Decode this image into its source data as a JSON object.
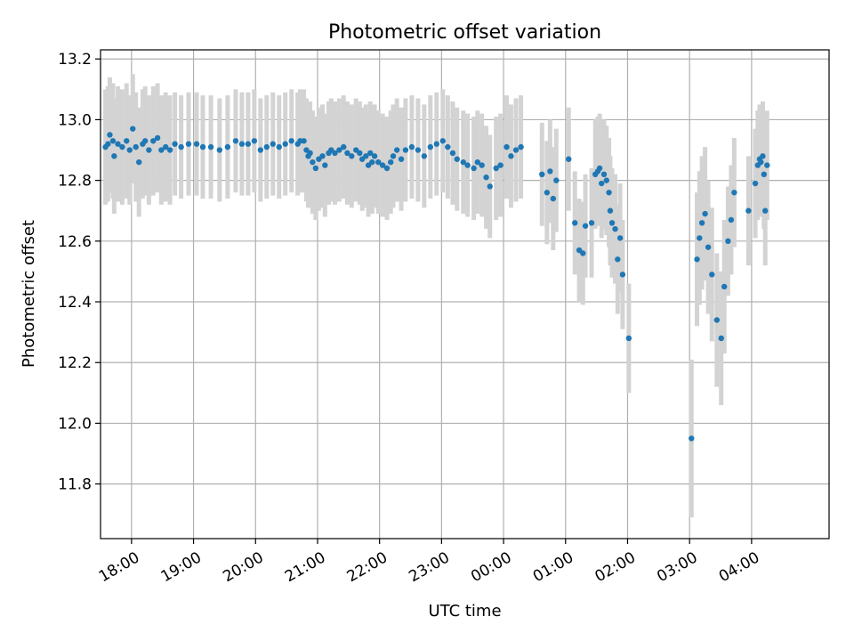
{
  "chart_data": {
    "type": "scatter",
    "title": "Photometric offset variation",
    "xlabel": "UTC time",
    "ylabel": "Photometric offset",
    "grid": true,
    "legend": "none",
    "x_unit": "hours since 17:00 UTC",
    "xlim": [
      0.5,
      12.25
    ],
    "ylim": [
      11.62,
      13.23
    ],
    "x_ticks": [
      {
        "value": 1,
        "label": "18:00"
      },
      {
        "value": 2,
        "label": "19:00"
      },
      {
        "value": 3,
        "label": "20:00"
      },
      {
        "value": 4,
        "label": "21:00"
      },
      {
        "value": 5,
        "label": "22:00"
      },
      {
        "value": 6,
        "label": "23:00"
      },
      {
        "value": 7,
        "label": "00:00"
      },
      {
        "value": 8,
        "label": "01:00"
      },
      {
        "value": 9,
        "label": "02:00"
      },
      {
        "value": 10,
        "label": "03:00"
      },
      {
        "value": 11,
        "label": "04:00"
      }
    ],
    "y_ticks": [
      {
        "value": 11.8,
        "label": "11.8"
      },
      {
        "value": 12.0,
        "label": "12.0"
      },
      {
        "value": 12.2,
        "label": "12.2"
      },
      {
        "value": 12.4,
        "label": "12.4"
      },
      {
        "value": 12.6,
        "label": "12.6"
      },
      {
        "value": 12.8,
        "label": "12.8"
      },
      {
        "value": 13.0,
        "label": "13.0"
      },
      {
        "value": 13.2,
        "label": "13.2"
      }
    ],
    "colors": {
      "points": "#1f77b4",
      "errorbars": "#d3d3d3",
      "grid": "#b0b0b0"
    },
    "series": [
      {
        "name": "Photometric offset",
        "x": [
          0.58,
          0.62,
          0.65,
          0.7,
          0.72,
          0.78,
          0.85,
          0.92,
          0.97,
          1.02,
          1.07,
          1.12,
          1.18,
          1.22,
          1.28,
          1.35,
          1.42,
          1.48,
          1.55,
          1.62,
          1.7,
          1.8,
          1.92,
          2.05,
          2.15,
          2.28,
          2.42,
          2.55,
          2.68,
          2.78,
          2.88,
          2.98,
          3.08,
          3.18,
          3.28,
          3.38,
          3.48,
          3.58,
          3.68,
          3.72,
          3.78,
          3.82,
          3.85,
          3.88,
          3.92,
          3.97,
          4.02,
          4.08,
          4.12,
          4.18,
          4.22,
          4.28,
          4.35,
          4.42,
          4.48,
          4.55,
          4.62,
          4.68,
          4.72,
          4.78,
          4.82,
          4.85,
          4.88,
          4.92,
          4.98,
          5.05,
          5.12,
          5.18,
          5.22,
          5.28,
          5.35,
          5.42,
          5.52,
          5.62,
          5.72,
          5.82,
          5.92,
          6.02,
          6.1,
          6.18,
          6.25,
          6.35,
          6.42,
          6.52,
          6.58,
          6.65,
          6.72,
          6.78,
          6.88,
          6.95,
          7.05,
          7.12,
          7.2,
          7.28,
          7.62,
          7.7,
          7.75,
          7.8,
          7.85,
          8.05,
          8.15,
          8.22,
          8.28,
          8.32,
          8.42,
          8.48,
          8.52,
          8.55,
          8.58,
          8.62,
          8.66,
          8.7,
          8.72,
          8.75,
          8.8,
          8.84,
          8.88,
          8.92,
          9.02,
          10.03,
          10.12,
          10.16,
          10.2,
          10.25,
          10.3,
          10.36,
          10.44,
          10.51,
          10.56,
          10.62,
          10.67,
          10.72,
          10.95,
          11.06,
          11.1,
          11.13,
          11.15,
          11.18,
          11.2,
          11.22,
          11.25
        ],
        "y": [
          12.91,
          12.92,
          12.95,
          12.93,
          12.88,
          12.92,
          12.91,
          12.93,
          12.9,
          12.97,
          12.91,
          12.86,
          12.92,
          12.93,
          12.9,
          12.93,
          12.94,
          12.9,
          12.91,
          12.9,
          12.92,
          12.91,
          12.92,
          12.92,
          12.91,
          12.91,
          12.9,
          12.91,
          12.93,
          12.92,
          12.92,
          12.93,
          12.9,
          12.91,
          12.92,
          12.91,
          12.92,
          12.93,
          12.92,
          12.93,
          12.93,
          12.9,
          12.88,
          12.89,
          12.86,
          12.84,
          12.87,
          12.88,
          12.85,
          12.89,
          12.9,
          12.89,
          12.9,
          12.91,
          12.89,
          12.88,
          12.9,
          12.89,
          12.87,
          12.88,
          12.85,
          12.89,
          12.86,
          12.88,
          12.86,
          12.85,
          12.84,
          12.86,
          12.88,
          12.9,
          12.87,
          12.9,
          12.91,
          12.9,
          12.88,
          12.91,
          12.92,
          12.93,
          12.91,
          12.89,
          12.87,
          12.86,
          12.85,
          12.84,
          12.86,
          12.85,
          12.81,
          12.78,
          12.84,
          12.85,
          12.91,
          12.88,
          12.9,
          12.91,
          12.82,
          12.76,
          12.83,
          12.74,
          12.8,
          12.87,
          12.66,
          12.57,
          12.56,
          12.65,
          12.66,
          12.82,
          12.83,
          12.84,
          12.79,
          12.82,
          12.8,
          12.76,
          12.7,
          12.66,
          12.64,
          12.54,
          12.61,
          12.49,
          12.28,
          11.95,
          12.54,
          12.61,
          12.66,
          12.69,
          12.58,
          12.49,
          12.34,
          12.28,
          12.45,
          12.6,
          12.67,
          12.76,
          12.7,
          12.79,
          12.85,
          12.87,
          12.86,
          12.88,
          12.82,
          12.7,
          12.85
        ],
        "err": [
          0.19,
          0.19,
          0.19,
          0.19,
          0.19,
          0.19,
          0.19,
          0.19,
          0.18,
          0.18,
          0.18,
          0.18,
          0.18,
          0.18,
          0.18,
          0.18,
          0.18,
          0.18,
          0.18,
          0.18,
          0.17,
          0.17,
          0.17,
          0.17,
          0.17,
          0.17,
          0.17,
          0.17,
          0.17,
          0.17,
          0.17,
          0.17,
          0.17,
          0.17,
          0.17,
          0.17,
          0.17,
          0.17,
          0.17,
          0.17,
          0.17,
          0.17,
          0.17,
          0.17,
          0.17,
          0.17,
          0.17,
          0.17,
          0.17,
          0.17,
          0.17,
          0.17,
          0.17,
          0.17,
          0.17,
          0.17,
          0.17,
          0.17,
          0.17,
          0.17,
          0.17,
          0.17,
          0.17,
          0.17,
          0.17,
          0.17,
          0.17,
          0.17,
          0.17,
          0.17,
          0.17,
          0.17,
          0.17,
          0.17,
          0.17,
          0.17,
          0.17,
          0.17,
          0.17,
          0.17,
          0.17,
          0.17,
          0.17,
          0.17,
          0.17,
          0.17,
          0.17,
          0.17,
          0.17,
          0.17,
          0.17,
          0.17,
          0.17,
          0.17,
          0.17,
          0.17,
          0.17,
          0.17,
          0.17,
          0.17,
          0.17,
          0.17,
          0.17,
          0.17,
          0.18,
          0.18,
          0.18,
          0.18,
          0.18,
          0.18,
          0.18,
          0.18,
          0.18,
          0.18,
          0.18,
          0.18,
          0.18,
          0.18,
          0.18,
          0.26,
          0.22,
          0.22,
          0.22,
          0.22,
          0.22,
          0.22,
          0.22,
          0.22,
          0.22,
          0.18,
          0.18,
          0.18,
          0.18,
          0.18,
          0.18,
          0.18,
          0.18,
          0.18,
          0.18,
          0.18,
          0.18
        ]
      }
    ]
  }
}
